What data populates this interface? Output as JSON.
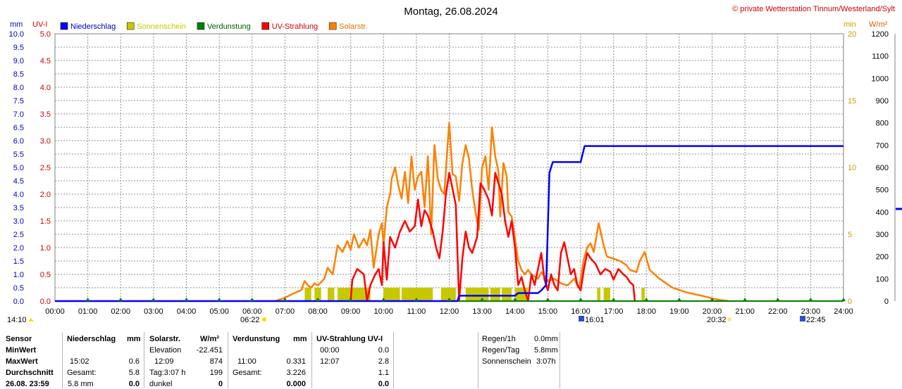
{
  "header": {
    "title": "Montag, 26.08.2024",
    "credit": "© private Wetterstation Tinnum/Westerland/Sylt"
  },
  "axes": {
    "mm_unit": "mm",
    "uvi_unit": "UV-I",
    "min_unit": "min",
    "wm2_unit": "W/m²"
  },
  "legend": [
    {
      "label": "Niederschlag",
      "color": "#0000ff"
    },
    {
      "label": "Sonnenschein",
      "color": "#c8c800"
    },
    {
      "label": "Verdunstung",
      "color": "#008000"
    },
    {
      "label": "UV-Strahlung",
      "color": "#ff0000"
    },
    {
      "label": "Solarstr.",
      "color": "#ff8000"
    }
  ],
  "markers": {
    "now_time": "14:10",
    "sunrise": "06:22",
    "sunset": "20:32",
    "event1": "16:01",
    "event2": "22:45"
  },
  "chart_data": {
    "type": "line",
    "title": "Montag, 26.08.2024",
    "x_ticks": [
      "00:00",
      "01:00",
      "02:00",
      "03:00",
      "04:00",
      "05:00",
      "06:00",
      "07:00",
      "08:00",
      "09:00",
      "10:00",
      "11:00",
      "12:00",
      "13:00",
      "14:00",
      "15:00",
      "16:00",
      "17:00",
      "18:00",
      "19:00",
      "20:00",
      "21:00",
      "22:00",
      "23:00",
      "24:00"
    ],
    "y_left_mm": {
      "label": "mm",
      "range": [
        0,
        10
      ],
      "ticks": [
        "0.0",
        "0.5",
        "1.0",
        "1.5",
        "2.0",
        "2.5",
        "3.0",
        "3.5",
        "4.0",
        "4.5",
        "5.0",
        "5.5",
        "6.0",
        "6.5",
        "7.0",
        "7.5",
        "8.0",
        "8.5",
        "9.0",
        "9.5",
        "10.0"
      ]
    },
    "y_left_uvi": {
      "label": "UV-I",
      "range": [
        0,
        5
      ],
      "ticks": [
        "0.0",
        "0.5",
        "1.0",
        "1.5",
        "2.0",
        "2.5",
        "3.0",
        "3.5",
        "4.0",
        "4.5",
        "5.0"
      ]
    },
    "y_right_min": {
      "label": "min",
      "range": [
        0,
        20
      ],
      "ticks": [
        "0",
        "5",
        "10",
        "15",
        "20"
      ]
    },
    "y_right_wm2": {
      "label": "W/m²",
      "range": [
        0,
        1200
      ],
      "ticks": [
        "0",
        "100",
        "200",
        "300",
        "400",
        "500",
        "600",
        "700",
        "800",
        "900",
        "1000",
        "1100",
        "1200"
      ]
    },
    "grid": true,
    "legend_position": "top-left",
    "series": [
      {
        "name": "Niederschlag",
        "unit": "mm",
        "color": "#0000ff",
        "points": [
          [
            0,
            0
          ],
          [
            12.25,
            0
          ],
          [
            12.3,
            0.2
          ],
          [
            13.15,
            0.2
          ],
          [
            14.0,
            0.2
          ],
          [
            14.1,
            0.3
          ],
          [
            14.7,
            0.3
          ],
          [
            14.8,
            0.4
          ],
          [
            14.95,
            0.6
          ],
          [
            15.05,
            4.8
          ],
          [
            15.15,
            5.2
          ],
          [
            16.0,
            5.2
          ],
          [
            16.12,
            5.8
          ],
          [
            24,
            5.8
          ]
        ]
      },
      {
        "name": "Sonnenschein",
        "unit": "min",
        "color": "#c8c800",
        "bars": [
          [
            7.6,
            7.8,
            1
          ],
          [
            7.9,
            8.1,
            1
          ],
          [
            8.3,
            8.5,
            1
          ],
          [
            8.6,
            9.6,
            1
          ],
          [
            10.0,
            10.5,
            1
          ],
          [
            10.55,
            11.5,
            1
          ],
          [
            11.75,
            12.2,
            1
          ],
          [
            12.5,
            12.9,
            1
          ],
          [
            12.9,
            13.2,
            1
          ],
          [
            13.25,
            13.55,
            1
          ],
          [
            13.6,
            13.9,
            1
          ],
          [
            14.0,
            14.4,
            1
          ],
          [
            16.5,
            16.6,
            1
          ],
          [
            16.7,
            16.9,
            1
          ],
          [
            17.85,
            17.95,
            1
          ]
        ]
      },
      {
        "name": "Verdunstung",
        "unit": "mm",
        "color": "#008000",
        "points": [
          [
            0,
            0
          ],
          [
            24,
            0
          ]
        ]
      },
      {
        "name": "UV-Strahlung",
        "unit": "UV-I",
        "color": "#ff0000",
        "points": [
          [
            9.0,
            0
          ],
          [
            9.05,
            0.4
          ],
          [
            9.2,
            0.6
          ],
          [
            9.4,
            0.5
          ],
          [
            9.5,
            0
          ],
          [
            9.6,
            0.3
          ],
          [
            9.75,
            0.5
          ],
          [
            9.85,
            0.6
          ],
          [
            9.95,
            0.3
          ],
          [
            10.0,
            1.1
          ],
          [
            10.1,
            0.4
          ],
          [
            10.2,
            1.2
          ],
          [
            10.35,
            1.0
          ],
          [
            10.5,
            1.3
          ],
          [
            10.65,
            1.5
          ],
          [
            10.8,
            1.3
          ],
          [
            10.95,
            1.4
          ],
          [
            11.05,
            1.9
          ],
          [
            11.15,
            1.4
          ],
          [
            11.25,
            1.7
          ],
          [
            11.35,
            1.6
          ],
          [
            11.5,
            1.3
          ],
          [
            11.6,
            1.0
          ],
          [
            11.7,
            0.8
          ],
          [
            11.8,
            1.3
          ],
          [
            11.9,
            2.0
          ],
          [
            12.0,
            2.4
          ],
          [
            12.1,
            2.1
          ],
          [
            12.2,
            1.8
          ],
          [
            12.3,
            0
          ],
          [
            12.4,
            0.8
          ],
          [
            12.5,
            1.3
          ],
          [
            12.6,
            1.0
          ],
          [
            12.7,
            0.9
          ],
          [
            12.85,
            1.2
          ],
          [
            12.95,
            2.2
          ],
          [
            13.05,
            2.1
          ],
          [
            13.2,
            1.9
          ],
          [
            13.3,
            1.6
          ],
          [
            13.4,
            2.4
          ],
          [
            13.5,
            2.2
          ],
          [
            13.6,
            2.0
          ],
          [
            13.7,
            1.5
          ],
          [
            13.8,
            1.2
          ],
          [
            13.9,
            1.5
          ],
          [
            14.0,
            1.0
          ],
          [
            14.1,
            0.3
          ],
          [
            14.2,
            0.45
          ],
          [
            14.3,
            0.2
          ],
          [
            14.4,
            0
          ],
          [
            14.5,
            0.5
          ],
          [
            14.6,
            0.3
          ],
          [
            14.8,
            0.9
          ],
          [
            14.9,
            0.4
          ],
          [
            15.0,
            0.2
          ],
          [
            15.1,
            0.5
          ],
          [
            15.2,
            0.3
          ],
          [
            15.3,
            0.2
          ],
          [
            15.4,
            0.9
          ],
          [
            15.5,
            1.1
          ],
          [
            15.6,
            0.8
          ],
          [
            15.7,
            0.5
          ],
          [
            15.8,
            0.6
          ],
          [
            15.9,
            0.3
          ],
          [
            16.0,
            0.2
          ],
          [
            16.1,
            0.6
          ],
          [
            16.2,
            0.9
          ],
          [
            16.3,
            0.8
          ],
          [
            16.45,
            0.7
          ],
          [
            16.6,
            0.5
          ],
          [
            16.75,
            0.6
          ],
          [
            16.9,
            0.55
          ],
          [
            17.0,
            0.4
          ],
          [
            17.15,
            0.6
          ],
          [
            17.3,
            0.5
          ],
          [
            17.4,
            0.45
          ],
          [
            17.5,
            0.35
          ],
          [
            17.6,
            0.3
          ],
          [
            17.65,
            0
          ]
        ]
      },
      {
        "name": "Solarstr.",
        "unit": "W/m²",
        "color": "#ff8000",
        "points": [
          [
            6.7,
            0
          ],
          [
            7.0,
            15
          ],
          [
            7.2,
            30
          ],
          [
            7.5,
            50
          ],
          [
            7.6,
            90
          ],
          [
            7.7,
            70
          ],
          [
            7.8,
            60
          ],
          [
            7.9,
            80
          ],
          [
            8.0,
            70
          ],
          [
            8.2,
            100
          ],
          [
            8.3,
            150
          ],
          [
            8.45,
            120
          ],
          [
            8.5,
            160
          ],
          [
            8.6,
            250
          ],
          [
            8.75,
            220
          ],
          [
            8.9,
            270
          ],
          [
            9.0,
            230
          ],
          [
            9.1,
            300
          ],
          [
            9.25,
            240
          ],
          [
            9.4,
            280
          ],
          [
            9.5,
            250
          ],
          [
            9.6,
            320
          ],
          [
            9.7,
            150
          ],
          [
            9.85,
            300
          ],
          [
            9.95,
            350
          ],
          [
            10.0,
            250
          ],
          [
            10.1,
            420
          ],
          [
            10.2,
            480
          ],
          [
            10.25,
            550
          ],
          [
            10.35,
            600
          ],
          [
            10.45,
            520
          ],
          [
            10.55,
            460
          ],
          [
            10.65,
            580
          ],
          [
            10.75,
            440
          ],
          [
            10.85,
            650
          ],
          [
            10.95,
            500
          ],
          [
            11.05,
            560
          ],
          [
            11.15,
            580
          ],
          [
            11.25,
            420
          ],
          [
            11.35,
            650
          ],
          [
            11.45,
            300
          ],
          [
            11.55,
            700
          ],
          [
            11.65,
            550
          ],
          [
            11.75,
            500
          ],
          [
            11.85,
            480
          ],
          [
            11.95,
            700
          ],
          [
            12.0,
            800
          ],
          [
            12.1,
            570
          ],
          [
            12.2,
            560
          ],
          [
            12.3,
            450
          ],
          [
            12.4,
            620
          ],
          [
            12.5,
            700
          ],
          [
            12.6,
            640
          ],
          [
            12.7,
            500
          ],
          [
            12.8,
            400
          ],
          [
            12.9,
            320
          ],
          [
            13.0,
            600
          ],
          [
            13.1,
            650
          ],
          [
            13.2,
            500
          ],
          [
            13.3,
            780
          ],
          [
            13.4,
            650
          ],
          [
            13.5,
            580
          ],
          [
            13.55,
            380
          ],
          [
            13.65,
            620
          ],
          [
            13.75,
            560
          ],
          [
            13.8,
            400
          ],
          [
            13.9,
            380
          ],
          [
            14.0,
            280
          ],
          [
            14.1,
            180
          ],
          [
            14.2,
            140
          ],
          [
            14.3,
            120
          ],
          [
            14.4,
            140
          ],
          [
            14.5,
            120
          ],
          [
            14.6,
            110
          ],
          [
            14.7,
            100
          ],
          [
            14.8,
            130
          ],
          [
            14.9,
            110
          ],
          [
            15.0,
            90
          ],
          [
            15.2,
            100
          ],
          [
            15.4,
            80
          ],
          [
            15.6,
            70
          ],
          [
            15.8,
            100
          ],
          [
            15.95,
            60
          ],
          [
            16.0,
            100
          ],
          [
            16.1,
            190
          ],
          [
            16.2,
            240
          ],
          [
            16.3,
            260
          ],
          [
            16.4,
            220
          ],
          [
            16.55,
            350
          ],
          [
            16.7,
            250
          ],
          [
            16.8,
            200
          ],
          [
            17.0,
            190
          ],
          [
            17.2,
            180
          ],
          [
            17.4,
            160
          ],
          [
            17.5,
            140
          ],
          [
            17.7,
            130
          ],
          [
            17.8,
            180
          ],
          [
            17.95,
            220
          ],
          [
            18.1,
            140
          ],
          [
            18.25,
            120
          ],
          [
            18.4,
            100
          ],
          [
            18.6,
            80
          ],
          [
            18.8,
            60
          ],
          [
            19.0,
            50
          ],
          [
            19.2,
            40
          ],
          [
            19.5,
            30
          ],
          [
            19.8,
            20
          ],
          [
            20.0,
            12
          ],
          [
            20.2,
            6
          ],
          [
            20.4,
            2
          ],
          [
            20.5,
            0
          ]
        ]
      }
    ]
  },
  "stats": {
    "h_sensor": "Sensor",
    "h_min": "MinWert",
    "h_max": "MaxWert",
    "h_avg": "Durchschnitt",
    "h_date": "26.08. 23:59",
    "h_total": "5.8 mm",
    "ns_title": "Niederschlag",
    "ns_unit": "mm",
    "ns_max_time": "15:02",
    "ns_max_val": "0.6",
    "ns_total_label": "Gesamt:",
    "ns_total_val": "5.8",
    "ns_bottom": "0.0",
    "sol_title": "Solarstr.",
    "sol_unit": "W/m²",
    "sol_elev_label": "Elevation",
    "sol_elev_val": "-22.451",
    "sol_max_time": "12:09",
    "sol_max_val": "874",
    "sol_day_label": "Tag:3:07 h",
    "sol_day_val": "199",
    "sol_dark_label": "dunkel",
    "sol_dark_val": "0",
    "ver_title": "Verdunstung",
    "ver_unit": "mm",
    "ver_max_time": "11:00",
    "ver_max_val": "0.331",
    "ver_total_label": "Gesamt:",
    "ver_total_val": "3.226",
    "ver_bottom": "0.000",
    "uv_title": "UV-Strahlung UV-I",
    "uv_min_time": "00:00",
    "uv_min_val": "0.0",
    "uv_max_time": "12:07",
    "uv_max_val": "2.8",
    "uv_avg_val": "1.1",
    "uv_bottom": "0.0",
    "rain1h_label": "Regen/1h",
    "rain1h_val": "0.0mm",
    "rainday_label": "Regen/Tag",
    "rainday_val": "5.8mm",
    "sun_label": "Sonnenschein",
    "sun_val": "3:07h"
  }
}
